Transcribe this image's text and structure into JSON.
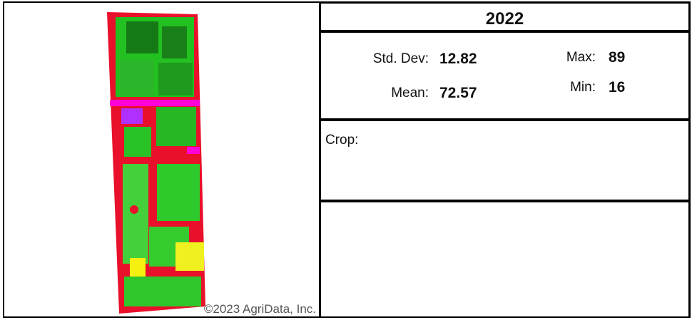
{
  "header": {
    "title": "2022"
  },
  "stats": {
    "std_dev": {
      "label": "Std. Dev:",
      "value": "12.82"
    },
    "mean": {
      "label": "Mean:",
      "value": "72.57"
    },
    "max": {
      "label": "Max:",
      "value": "89"
    },
    "min": {
      "label": "Min:",
      "value": "16"
    }
  },
  "crop": {
    "label": "Crop:"
  },
  "footer": {
    "copyright": "©2023 AgriData, Inc."
  }
}
